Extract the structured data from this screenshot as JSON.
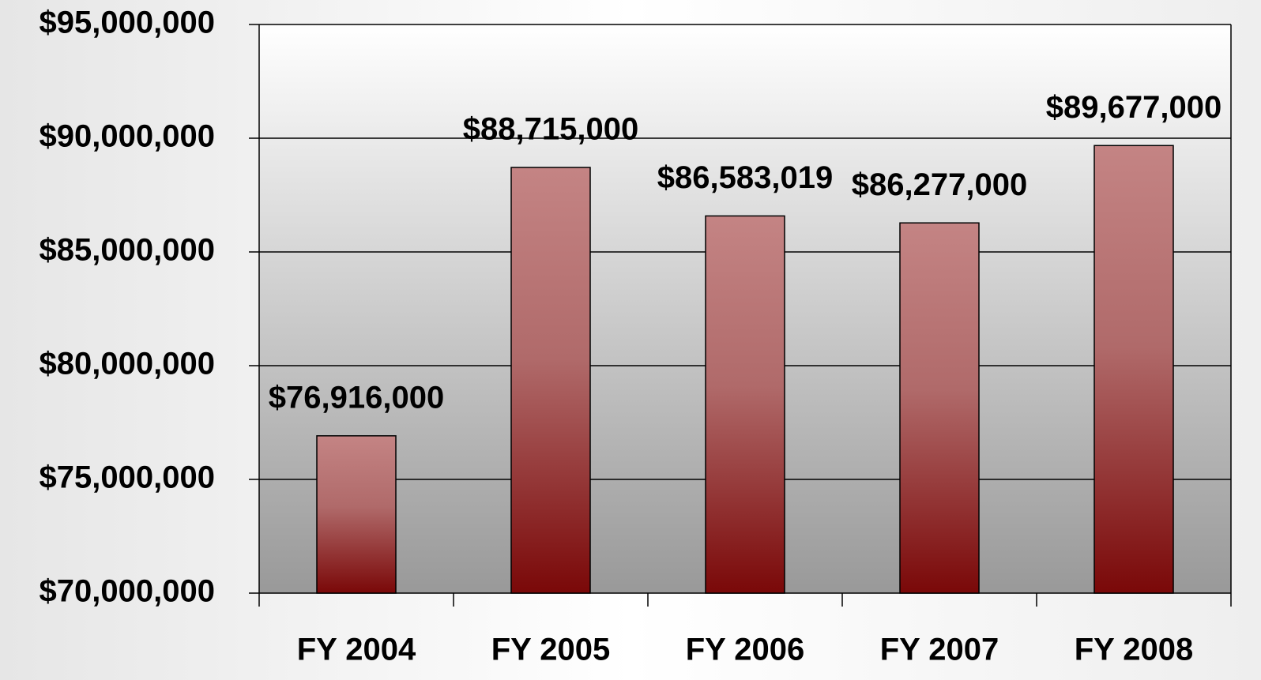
{
  "chart_data": {
    "type": "bar",
    "categories": [
      "FY 2004",
      "FY 2005",
      "FY 2006",
      "FY 2007",
      "FY 2008"
    ],
    "values": [
      76916000,
      88715000,
      86583019,
      86277000,
      89677000
    ],
    "value_labels": [
      "$76,916,000",
      "$88,715,000",
      "$86,583,019",
      "$86,277,000",
      "$89,677,000"
    ],
    "color": "#8b1a1a",
    "ylim": [
      70000000,
      95000000
    ],
    "yticks": [
      {
        "value": 70000000,
        "label": "$70,000,000"
      },
      {
        "value": 75000000,
        "label": "$75,000,000"
      },
      {
        "value": 80000000,
        "label": "$80,000,000"
      },
      {
        "value": 85000000,
        "label": "$85,000,000"
      },
      {
        "value": 90000000,
        "label": "$90,000,000"
      },
      {
        "value": 95000000,
        "label": "$95,000,000"
      }
    ],
    "grid": true
  }
}
